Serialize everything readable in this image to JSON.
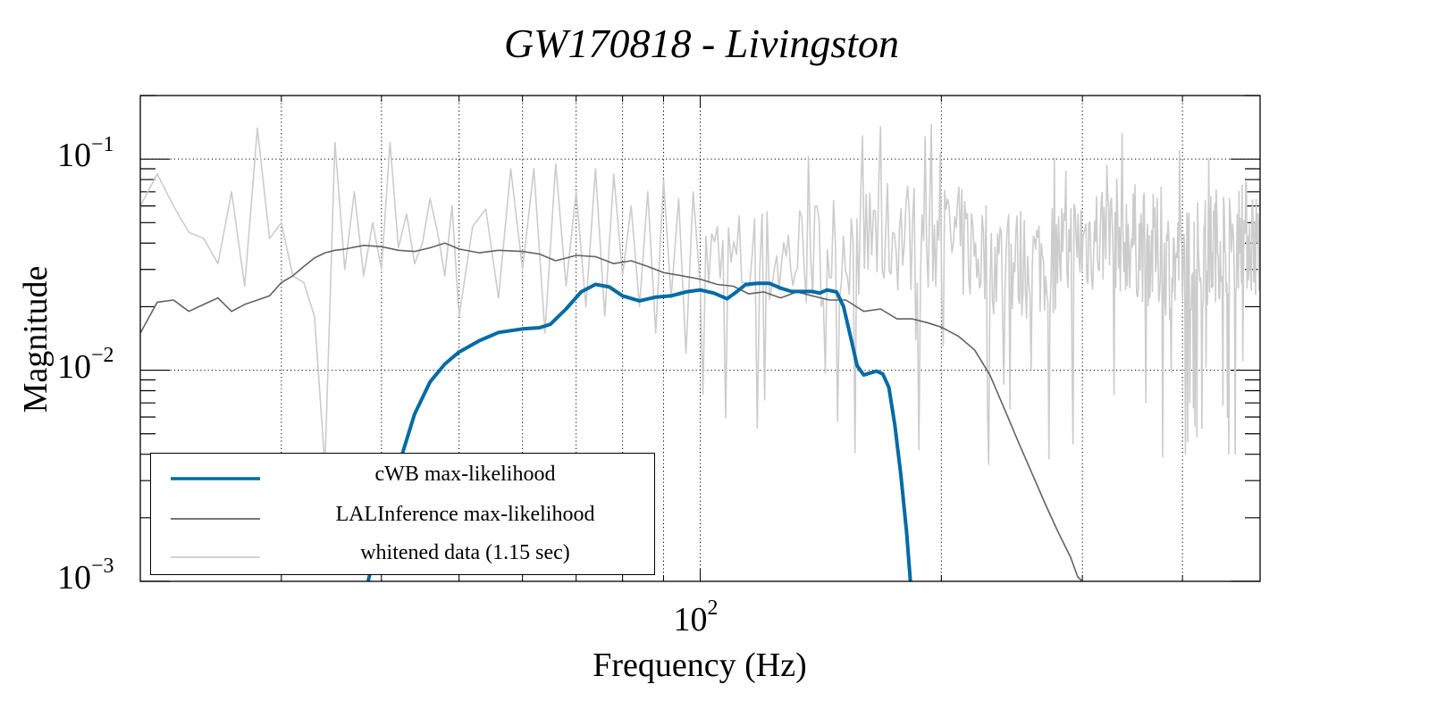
{
  "chart_data": {
    "type": "line",
    "title": "GW170818 - Livingston",
    "xlabel": "Frequency (Hz)",
    "ylabel": "Magnitude",
    "xscale": "log",
    "yscale": "log",
    "xlim": [
      20,
      500
    ],
    "ylim": [
      0.001,
      0.2
    ],
    "grid": true,
    "x_ticks": [
      {
        "value": 100,
        "label_base": "10",
        "label_exp": "2"
      }
    ],
    "y_ticks": [
      {
        "value": 0.1,
        "label_base": "10",
        "label_exp": "−1"
      },
      {
        "value": 0.01,
        "label_base": "10",
        "label_exp": "−2"
      },
      {
        "value": 0.001,
        "label_base": "10",
        "label_exp": "−3"
      }
    ],
    "legend_position": "bottom-left",
    "series": [
      {
        "name": "cWB max-likelihood",
        "color": "#006ba4",
        "x": [
          38.5,
          40,
          42,
          44,
          46,
          48,
          50,
          53,
          56,
          60,
          63,
          65,
          68,
          71,
          74,
          77,
          80,
          84,
          88,
          92,
          96,
          100,
          104,
          108,
          111,
          114,
          118,
          122,
          126,
          130,
          134,
          138,
          141,
          144,
          148,
          151,
          154,
          157,
          160,
          163,
          166,
          169,
          172,
          175,
          178,
          181,
          183
        ],
        "y": [
          0.001,
          0.0018,
          0.0035,
          0.0062,
          0.0088,
          0.0107,
          0.0122,
          0.0138,
          0.0151,
          0.0157,
          0.0159,
          0.0165,
          0.0195,
          0.0235,
          0.0255,
          0.0248,
          0.0225,
          0.0213,
          0.0222,
          0.0225,
          0.0235,
          0.024,
          0.0232,
          0.0218,
          0.0235,
          0.0255,
          0.0258,
          0.0258,
          0.0245,
          0.0236,
          0.0236,
          0.0236,
          0.0232,
          0.024,
          0.0235,
          0.02,
          0.0145,
          0.0105,
          0.0095,
          0.0097,
          0.0099,
          0.0096,
          0.0083,
          0.0055,
          0.0032,
          0.0017,
          0.001
        ]
      },
      {
        "name": "LALInference max-likelihood",
        "color": "#636363",
        "x": [
          20,
          21,
          22,
          23,
          24,
          25,
          26,
          27,
          28,
          29,
          30,
          31,
          32,
          33,
          34,
          35,
          36,
          38,
          40,
          42,
          44,
          46,
          48,
          50,
          53,
          56,
          60,
          63,
          66,
          70,
          74,
          78,
          82,
          86,
          90,
          95,
          100,
          105,
          110,
          115,
          120,
          126,
          132,
          138,
          145,
          152,
          160,
          168,
          176,
          184,
          192,
          200,
          210,
          220,
          230,
          240,
          250,
          260,
          270,
          280,
          290,
          296,
          300
        ],
        "y": [
          0.015,
          0.021,
          0.0215,
          0.019,
          0.0205,
          0.022,
          0.019,
          0.0205,
          0.0215,
          0.0225,
          0.026,
          0.028,
          0.031,
          0.034,
          0.036,
          0.037,
          0.0375,
          0.039,
          0.0385,
          0.037,
          0.0365,
          0.038,
          0.04,
          0.0375,
          0.036,
          0.037,
          0.0365,
          0.0355,
          0.033,
          0.035,
          0.0345,
          0.032,
          0.033,
          0.031,
          0.029,
          0.028,
          0.027,
          0.0255,
          0.025,
          0.023,
          0.0235,
          0.022,
          0.0235,
          0.0225,
          0.0215,
          0.0215,
          0.019,
          0.0195,
          0.0175,
          0.0175,
          0.0168,
          0.016,
          0.0145,
          0.0125,
          0.0095,
          0.0065,
          0.0045,
          0.0032,
          0.0023,
          0.0017,
          0.0013,
          0.00105,
          0.001
        ]
      },
      {
        "name": "whitened data (1.15 sec)",
        "color": "#cccccc",
        "generated": "dense noisy trace, ~0.003–0.14 with typical level ~0.03–0.05 at high frequency",
        "x": [
          20,
          21,
          22,
          23,
          24,
          25,
          26,
          27,
          28,
          29,
          30,
          31,
          32,
          33,
          34,
          35,
          36,
          37,
          38,
          39,
          40,
          41,
          42,
          43,
          44,
          45,
          46,
          47,
          48,
          49,
          50,
          52,
          54,
          56,
          58,
          60,
          62,
          64,
          66,
          68,
          70,
          72,
          74,
          76,
          78,
          80,
          82,
          84,
          86,
          88,
          90,
          92,
          94,
          96,
          98,
          100
        ],
        "y": [
          0.06,
          0.085,
          0.06,
          0.045,
          0.042,
          0.032,
          0.07,
          0.025,
          0.14,
          0.042,
          0.05,
          0.028,
          0.026,
          0.018,
          0.0035,
          0.12,
          0.03,
          0.07,
          0.028,
          0.05,
          0.03,
          0.12,
          0.038,
          0.055,
          0.032,
          0.04,
          0.065,
          0.045,
          0.028,
          0.06,
          0.018,
          0.048,
          0.058,
          0.022,
          0.09,
          0.03,
          0.09,
          0.015,
          0.095,
          0.025,
          0.07,
          0.02,
          0.09,
          0.018,
          0.085,
          0.028,
          0.06,
          0.02,
          0.07,
          0.015,
          0.08,
          0.022,
          0.065,
          0.012,
          0.07,
          0.025
        ]
      }
    ]
  },
  "legend": {
    "items": [
      {
        "label": "cWB max-likelihood"
      },
      {
        "label": "LALInference max-likelihood"
      },
      {
        "label": "whitened data (1.15 sec)"
      }
    ]
  }
}
